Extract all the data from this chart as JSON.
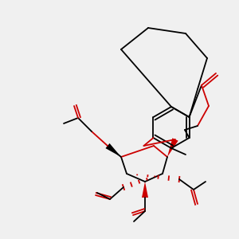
{
  "bg": "#f0f0f0",
  "lc": "#000000",
  "rc": "#cc0000",
  "figsize": [
    3.0,
    3.0
  ],
  "dpi": 100
}
